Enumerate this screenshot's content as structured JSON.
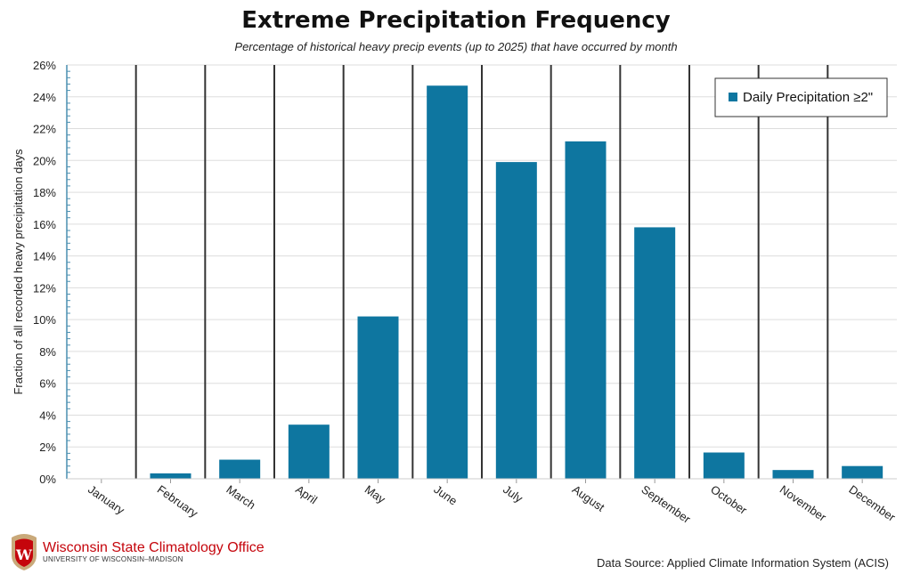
{
  "chart_data": {
    "type": "bar",
    "title": "Extreme Precipitation Frequency",
    "subtitle": "Percentage of historical heavy precip events (up to 2025) that have occurred by month",
    "xlabel": "",
    "ylabel": "Fraction of all recorded heavy precipitation days",
    "ylim": [
      0,
      26
    ],
    "yticks": [
      0,
      2,
      4,
      6,
      8,
      10,
      12,
      14,
      16,
      18,
      20,
      22,
      24,
      26
    ],
    "ytick_labels": [
      "0%",
      "2%",
      "4%",
      "6%",
      "8%",
      "10%",
      "12%",
      "14%",
      "16%",
      "18%",
      "20%",
      "22%",
      "24%",
      "26%"
    ],
    "categories": [
      "January",
      "February",
      "March",
      "April",
      "May",
      "June",
      "July",
      "August",
      "September",
      "October",
      "November",
      "December"
    ],
    "series": [
      {
        "name": "Daily Precipitation ≥2\"",
        "values": [
          0,
          0.34,
          1.2,
          3.4,
          10.2,
          24.7,
          19.9,
          21.2,
          15.8,
          1.65,
          0.55,
          0.8
        ],
        "color": "#0e76a0"
      }
    ],
    "legend": {
      "label": "Daily Precipitation ≥2\"",
      "placement": "top-right"
    },
    "grid": true
  },
  "footer": {
    "source": "Data Source: Applied Climate Information System (ACIS)",
    "org": "Wisconsin State Climatology Office",
    "org_sub": "UNIVERSITY OF WISCONSIN–MADISON"
  }
}
